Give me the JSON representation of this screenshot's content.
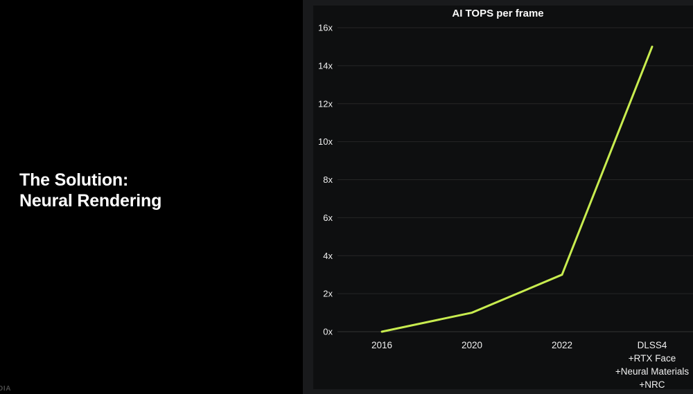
{
  "slide": {
    "title_lines": [
      "The Solution:",
      "Neural Rendering"
    ],
    "brand_mark_visible": "DIA",
    "colors": {
      "background": "#000000",
      "title_text": "#ffffff",
      "brand_text": "#4a4a4a"
    }
  },
  "chart_data": {
    "type": "line",
    "title": "AI TOPS per frame",
    "categories": [
      "2016",
      "2020",
      "2022",
      "DLSS4 +RTX Face +Neural Materials +NRC"
    ],
    "category_labels": [
      [
        "2016"
      ],
      [
        "2020"
      ],
      [
        "2022"
      ],
      [
        "DLSS4",
        "+RTX Face",
        "+Neural Materials",
        "+NRC"
      ]
    ],
    "values": [
      0,
      1,
      3,
      15
    ],
    "xlabel": "",
    "ylabel": "",
    "ylim": [
      0,
      16
    ],
    "yticks": [
      0,
      2,
      4,
      6,
      8,
      10,
      12,
      14,
      16
    ],
    "ytick_labels": [
      "0x",
      "2x",
      "4x",
      "6x",
      "8x",
      "10x",
      "12x",
      "14x",
      "16x"
    ],
    "grid": true,
    "legend": false,
    "line_width": 3,
    "colors": {
      "line": "#c8ec4f",
      "grid": "#262626",
      "zero_axis": "#343434",
      "tick_text": "#f0f0f0",
      "title_text": "#fafafa",
      "panel_background": "#0e0f10",
      "region_background": "#191a1c"
    }
  }
}
